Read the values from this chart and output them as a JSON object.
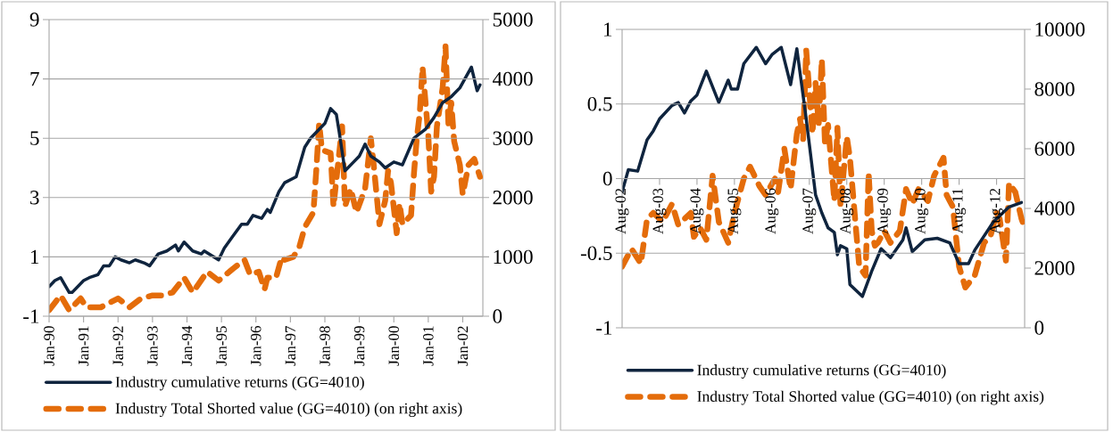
{
  "chart_data": [
    {
      "type": "line",
      "xlim": [
        "1990-01",
        "2002-08"
      ],
      "xticks": [
        {
          "value": "1990-01",
          "label": "Jan-90"
        },
        {
          "value": "1991-01",
          "label": "Jan-91"
        },
        {
          "value": "1992-01",
          "label": "Jan-92"
        },
        {
          "value": "1993-01",
          "label": "Jan-93"
        },
        {
          "value": "1994-01",
          "label": "Jan-94"
        },
        {
          "value": "1995-01",
          "label": "Jan-95"
        },
        {
          "value": "1996-01",
          "label": "Jan-96"
        },
        {
          "value": "1997-01",
          "label": "Jan-97"
        },
        {
          "value": "1998-01",
          "label": "Jan-98"
        },
        {
          "value": "1999-01",
          "label": "Jan-99"
        },
        {
          "value": "2000-01",
          "label": "Jan-00"
        },
        {
          "value": "2001-01",
          "label": "Jan-01"
        },
        {
          "value": "2002-01",
          "label": "Jan-02"
        }
      ],
      "ylim": [
        -1,
        9
      ],
      "yticks": [
        -1,
        1,
        3,
        5,
        7,
        9
      ],
      "y2lim": [
        0,
        5000
      ],
      "y2ticks": [
        0,
        1000,
        2000,
        3000,
        4000,
        5000
      ],
      "grid": "y",
      "legend": "bottom",
      "series": [
        {
          "name": "Industry cumulative returns (GG=4010)",
          "color": "#0f243e",
          "line_style": "solid",
          "x": [
            "1990-01",
            "1990-03",
            "1990-05",
            "1990-08",
            "1990-09",
            "1991-01",
            "1991-03",
            "1991-06",
            "1991-08",
            "1991-10",
            "1991-12",
            "1992-02",
            "1992-05",
            "1992-07",
            "1992-10",
            "1992-12",
            "1993-03",
            "1993-06",
            "1993-09",
            "1993-10",
            "1993-12",
            "1994-03",
            "1994-06",
            "1994-07",
            "1994-12",
            "1995-02",
            "1995-05",
            "1995-08",
            "1995-10",
            "1995-12",
            "1996-03",
            "1996-05",
            "1996-06",
            "1996-09",
            "1996-11",
            "1997-01",
            "1997-03",
            "1997-06",
            "1997-08",
            "1998-01",
            "1998-03",
            "1998-05",
            "1998-06",
            "1998-08",
            "1998-11",
            "1999-01",
            "1999-03",
            "1999-05",
            "1999-08",
            "1999-10",
            "2000-01",
            "2000-04",
            "2000-08",
            "2000-12",
            "2001-03",
            "2001-06",
            "2001-09",
            "2001-12",
            "2002-04",
            "2002-06",
            "2002-07"
          ],
          "values": [
            0.0,
            0.2,
            0.3,
            -0.2,
            -0.2,
            0.2,
            0.3,
            0.4,
            0.7,
            0.7,
            1.0,
            0.9,
            0.8,
            0.9,
            0.8,
            0.7,
            1.1,
            1.2,
            1.4,
            1.2,
            1.5,
            1.2,
            1.1,
            1.2,
            0.9,
            1.3,
            1.7,
            2.1,
            2.1,
            2.4,
            2.3,
            2.6,
            2.5,
            3.2,
            3.5,
            3.6,
            3.7,
            4.7,
            5.0,
            5.5,
            6.0,
            5.8,
            5.2,
            3.9,
            4.2,
            4.4,
            4.8,
            4.4,
            4.2,
            4.0,
            4.2,
            4.1,
            5.0,
            5.3,
            5.7,
            6.2,
            6.4,
            6.7,
            7.4,
            6.6,
            6.8
          ]
        },
        {
          "name": "Industry Total Shorted value (GG=4010) (on right axis)",
          "color": "#e46c0a",
          "axis": "y2",
          "line_style": "dashed",
          "x": [
            "1990-01",
            "1990-05",
            "1990-08",
            "1990-12",
            "1991-02",
            "1991-07",
            "1992-01",
            "1992-05",
            "1992-09",
            "1993-01",
            "1993-04",
            "1993-08",
            "1993-12",
            "1994-03",
            "1994-08",
            "1994-12",
            "1995-05",
            "1995-09",
            "1995-11",
            "1996-02",
            "1996-04",
            "1996-05",
            "1996-08",
            "1996-10",
            "1996-11",
            "1997-02",
            "1997-04",
            "1997-06",
            "1997-09",
            "1997-10",
            "1997-11",
            "1997-12",
            "1998-03",
            "1998-04",
            "1998-07",
            "1998-08",
            "1998-10",
            "1998-12",
            "1999-03",
            "1999-05",
            "1999-06",
            "1999-08",
            "1999-10",
            "1999-11",
            "1999-12",
            "2000-02",
            "2000-03",
            "2000-04",
            "2000-07",
            "2000-08",
            "2000-09",
            "2000-10",
            "2000-11",
            "2001-01",
            "2001-02",
            "2001-03",
            "2001-04",
            "2001-06",
            "2001-07",
            "2001-08",
            "2001-09",
            "2001-10",
            "2001-12",
            "2002-01",
            "2002-03",
            "2002-05",
            "2002-07"
          ],
          "values": [
            100,
            350,
            100,
            300,
            150,
            150,
            300,
            150,
            300,
            350,
            350,
            400,
            650,
            400,
            750,
            600,
            800,
            950,
            700,
            750,
            450,
            650,
            650,
            1000,
            950,
            1000,
            1150,
            1500,
            1750,
            2450,
            3250,
            2800,
            2750,
            1850,
            3200,
            1850,
            2150,
            1750,
            2150,
            3000,
            2550,
            1550,
            1950,
            2450,
            2250,
            1400,
            1900,
            1550,
            1700,
            2400,
            3000,
            3400,
            4200,
            3050,
            2100,
            2350,
            3200,
            3850,
            4550,
            3250,
            3600,
            2950,
            2550,
            2050,
            2550,
            2650,
            2350
          ]
        }
      ]
    },
    {
      "type": "line",
      "xlim": [
        "2002-08",
        "2013-05"
      ],
      "xticks": [
        {
          "value": "2002-08",
          "label": "Aug-02"
        },
        {
          "value": "2003-08",
          "label": "Aug-03"
        },
        {
          "value": "2004-08",
          "label": "Aug-04"
        },
        {
          "value": "2005-08",
          "label": "Aug-05"
        },
        {
          "value": "2006-08",
          "label": "Aug-06"
        },
        {
          "value": "2007-08",
          "label": "Aug-07"
        },
        {
          "value": "2008-08",
          "label": "Aug-08"
        },
        {
          "value": "2009-08",
          "label": "Aug-09"
        },
        {
          "value": "2010-08",
          "label": "Aug-10"
        },
        {
          "value": "2011-08",
          "label": "Aug-11"
        },
        {
          "value": "2012-08",
          "label": "Aug-12"
        }
      ],
      "ylim": [
        -1,
        1
      ],
      "yticks": [
        -1,
        -0.5,
        0,
        0.5,
        1
      ],
      "y2lim": [
        0,
        10000
      ],
      "y2ticks": [
        0,
        2000,
        4000,
        6000,
        8000,
        10000
      ],
      "grid": "y",
      "legend": "bottom",
      "series": [
        {
          "name": "Industry cumulative returns (GG=4010)",
          "color": "#0f243e",
          "line_style": "solid",
          "x": [
            "2002-08",
            "2002-10",
            "2003-01",
            "2003-04",
            "2003-06",
            "2003-08",
            "2003-12",
            "2004-02",
            "2004-04",
            "2004-06",
            "2004-08",
            "2004-11",
            "2005-03",
            "2005-06",
            "2005-07",
            "2005-09",
            "2005-11",
            "2006-03",
            "2006-06",
            "2006-08",
            "2006-11",
            "2007-02",
            "2007-04",
            "2007-07",
            "2007-10",
            "2007-12",
            "2008-02",
            "2008-04",
            "2008-05",
            "2008-06",
            "2008-08",
            "2008-09",
            "2009-01",
            "2009-04",
            "2009-07",
            "2009-10",
            "2010-02",
            "2010-03",
            "2010-05",
            "2010-09",
            "2011-01",
            "2011-05",
            "2011-08",
            "2011-11",
            "2012-01",
            "2012-07",
            "2012-12",
            "2013-04"
          ],
          "values": [
            -0.09,
            0.06,
            0.05,
            0.26,
            0.32,
            0.4,
            0.49,
            0.51,
            0.44,
            0.52,
            0.56,
            0.72,
            0.51,
            0.66,
            0.6,
            0.6,
            0.77,
            0.88,
            0.77,
            0.83,
            0.88,
            0.63,
            0.87,
            0.4,
            -0.11,
            -0.23,
            -0.33,
            -0.36,
            -0.51,
            -0.45,
            -0.47,
            -0.71,
            -0.79,
            -0.62,
            -0.47,
            -0.53,
            -0.41,
            -0.33,
            -0.49,
            -0.41,
            -0.4,
            -0.43,
            -0.57,
            -0.57,
            -0.48,
            -0.29,
            -0.19,
            -0.16
          ]
        },
        {
          "name": "Industry Total Shorted value (GG=4010) (on right axis)",
          "color": "#e46c0a",
          "axis": "y2",
          "line_style": "dashed",
          "x": [
            "2002-08",
            "2002-11",
            "2003-02",
            "2003-04",
            "2003-06",
            "2003-09",
            "2003-12",
            "2004-02",
            "2004-06",
            "2004-07",
            "2004-09",
            "2004-11",
            "2005-01",
            "2005-03",
            "2005-06",
            "2005-08",
            "2005-11",
            "2006-01",
            "2006-04",
            "2006-06",
            "2006-09",
            "2006-10",
            "2006-12",
            "2007-02",
            "2007-03",
            "2007-04",
            "2007-05",
            "2007-06",
            "2007-07",
            "2007-09",
            "2007-10",
            "2007-11",
            "2007-12",
            "2008-01",
            "2008-02",
            "2008-04",
            "2008-05",
            "2008-06",
            "2008-08",
            "2008-09",
            "2008-11",
            "2008-12",
            "2009-02",
            "2009-03",
            "2009-04",
            "2009-05",
            "2009-06",
            "2009-08",
            "2009-10",
            "2010-01",
            "2010-03",
            "2010-05",
            "2010-07",
            "2010-10",
            "2010-12",
            "2011-03",
            "2011-04",
            "2011-06",
            "2011-08",
            "2011-10",
            "2012-01",
            "2012-04",
            "2012-06",
            "2012-08",
            "2012-09",
            "2012-11",
            "2012-12",
            "2013-02",
            "2013-04",
            "2013-05"
          ],
          "values": [
            2050,
            2650,
            2150,
            3650,
            3850,
            3550,
            4150,
            3450,
            3850,
            3050,
            3350,
            2950,
            5100,
            3550,
            2850,
            3850,
            5000,
            5400,
            4750,
            4450,
            5000,
            4550,
            6000,
            4650,
            5600,
            6500,
            7000,
            6300,
            9300,
            6500,
            8200,
            6800,
            9000,
            6200,
            6800,
            4250,
            6700,
            4050,
            6400,
            5700,
            3250,
            2050,
            1750,
            5200,
            3250,
            2750,
            2850,
            3250,
            2850,
            3250,
            4650,
            4150,
            4650,
            4250,
            5100,
            5700,
            4450,
            4050,
            2050,
            1350,
            1750,
            2850,
            3050,
            3850,
            3650,
            2250,
            4850,
            4550,
            3650,
            3350
          ]
        }
      ]
    }
  ]
}
